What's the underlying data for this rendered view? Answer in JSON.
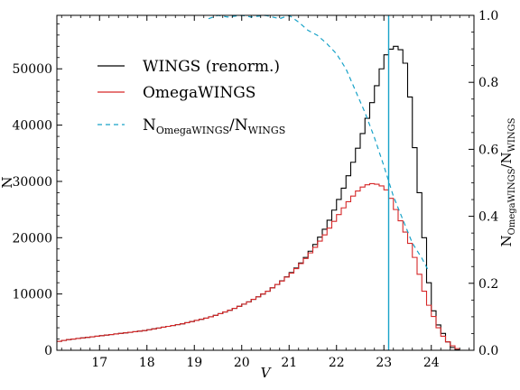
{
  "chart_data": {
    "type": "line",
    "title": "",
    "xlabel": "V",
    "ylabel": "N",
    "ylabel_right": {
      "base": "N",
      "sub1": "OmegaWINGS",
      "sep": "/N",
      "sub2": "WINGS"
    },
    "xlim": [
      16.1,
      24.9
    ],
    "ylim": [
      0,
      59500
    ],
    "ylim_right": [
      0,
      1.0
    ],
    "x_ticks": [
      "17",
      "18",
      "19",
      "20",
      "21",
      "22",
      "23",
      "24"
    ],
    "x_tick_values": [
      17,
      18,
      19,
      20,
      21,
      22,
      23,
      24
    ],
    "y_ticks": [
      "0",
      "10000",
      "20000",
      "30000",
      "40000",
      "50000"
    ],
    "y_tick_values": [
      0,
      10000,
      20000,
      30000,
      40000,
      50000
    ],
    "y_right_ticks": [
      "0.0",
      "0.2",
      "0.4",
      "0.6",
      "0.8",
      "1.0"
    ],
    "y_right_tick_values": [
      0.0,
      0.2,
      0.4,
      0.6,
      0.8,
      1.0
    ],
    "grid": false,
    "legend_position": "upper-left",
    "vline_x": 23.1,
    "bin_width": 0.1,
    "bin_start": 16.1,
    "series": [
      {
        "name": "WINGS (renorm.)",
        "style": "steps",
        "color": "#000000",
        "values": [
          1600,
          1750,
          1900,
          2000,
          2100,
          2200,
          2300,
          2400,
          2500,
          2600,
          2700,
          2800,
          2900,
          3000,
          3100,
          3200,
          3300,
          3400,
          3500,
          3650,
          3800,
          3950,
          4100,
          4250,
          4400,
          4550,
          4700,
          4900,
          5100,
          5300,
          5500,
          5700,
          5950,
          6200,
          6500,
          6800,
          7100,
          7450,
          7800,
          8200,
          8600,
          9050,
          9500,
          10000,
          10500,
          11100,
          11700,
          12350,
          13050,
          13800,
          14600,
          15500,
          16500,
          17600,
          18800,
          20100,
          21500,
          23100,
          24900,
          26800,
          28800,
          31000,
          33400,
          35900,
          38500,
          41200,
          44000,
          47000,
          50000,
          52500,
          53500,
          54000,
          53400,
          51000,
          45000,
          36000,
          28000,
          20000,
          12000,
          7000,
          4500,
          3000,
          1500,
          500,
          100
        ]
      },
      {
        "name": "OmegaWINGS",
        "style": "steps",
        "color": "#d62728",
        "values": [
          1600,
          1750,
          1900,
          2000,
          2100,
          2200,
          2300,
          2400,
          2500,
          2600,
          2700,
          2800,
          2900,
          3000,
          3100,
          3200,
          3300,
          3400,
          3500,
          3650,
          3800,
          3950,
          4100,
          4250,
          4400,
          4550,
          4700,
          4900,
          5100,
          5300,
          5500,
          5700,
          5950,
          6200,
          6500,
          6800,
          7100,
          7450,
          7800,
          8200,
          8600,
          9050,
          9500,
          10000,
          10500,
          11100,
          11700,
          12300,
          13000,
          13700,
          14500,
          15400,
          16300,
          17300,
          18300,
          19400,
          20500,
          21700,
          22900,
          24100,
          25300,
          26400,
          27400,
          28300,
          29000,
          29400,
          29600,
          29500,
          29200,
          28500,
          27000,
          25000,
          23000,
          21000,
          19000,
          16500,
          13500,
          10500,
          8000,
          6000,
          4000,
          2500,
          1500,
          800,
          300
        ]
      },
      {
        "name": "N_OmegaWINGS/N_WINGS",
        "style": "dashed",
        "axis": "right",
        "color": "#17a2c8",
        "x": [
          19.3,
          19.5,
          19.7,
          20.0,
          20.2,
          20.5,
          20.8,
          21.0,
          21.2,
          21.4,
          21.6,
          21.8,
          22.0,
          22.2,
          22.4,
          22.6,
          22.8,
          23.0,
          23.2,
          23.4,
          23.6,
          23.8,
          23.95
        ],
        "values": [
          0.99,
          1.0,
          0.995,
          1.0,
          0.995,
          1.0,
          0.99,
          1.0,
          0.98,
          0.955,
          0.94,
          0.915,
          0.885,
          0.84,
          0.775,
          0.71,
          0.635,
          0.55,
          0.46,
          0.39,
          0.32,
          0.275,
          0.235
        ]
      }
    ]
  }
}
